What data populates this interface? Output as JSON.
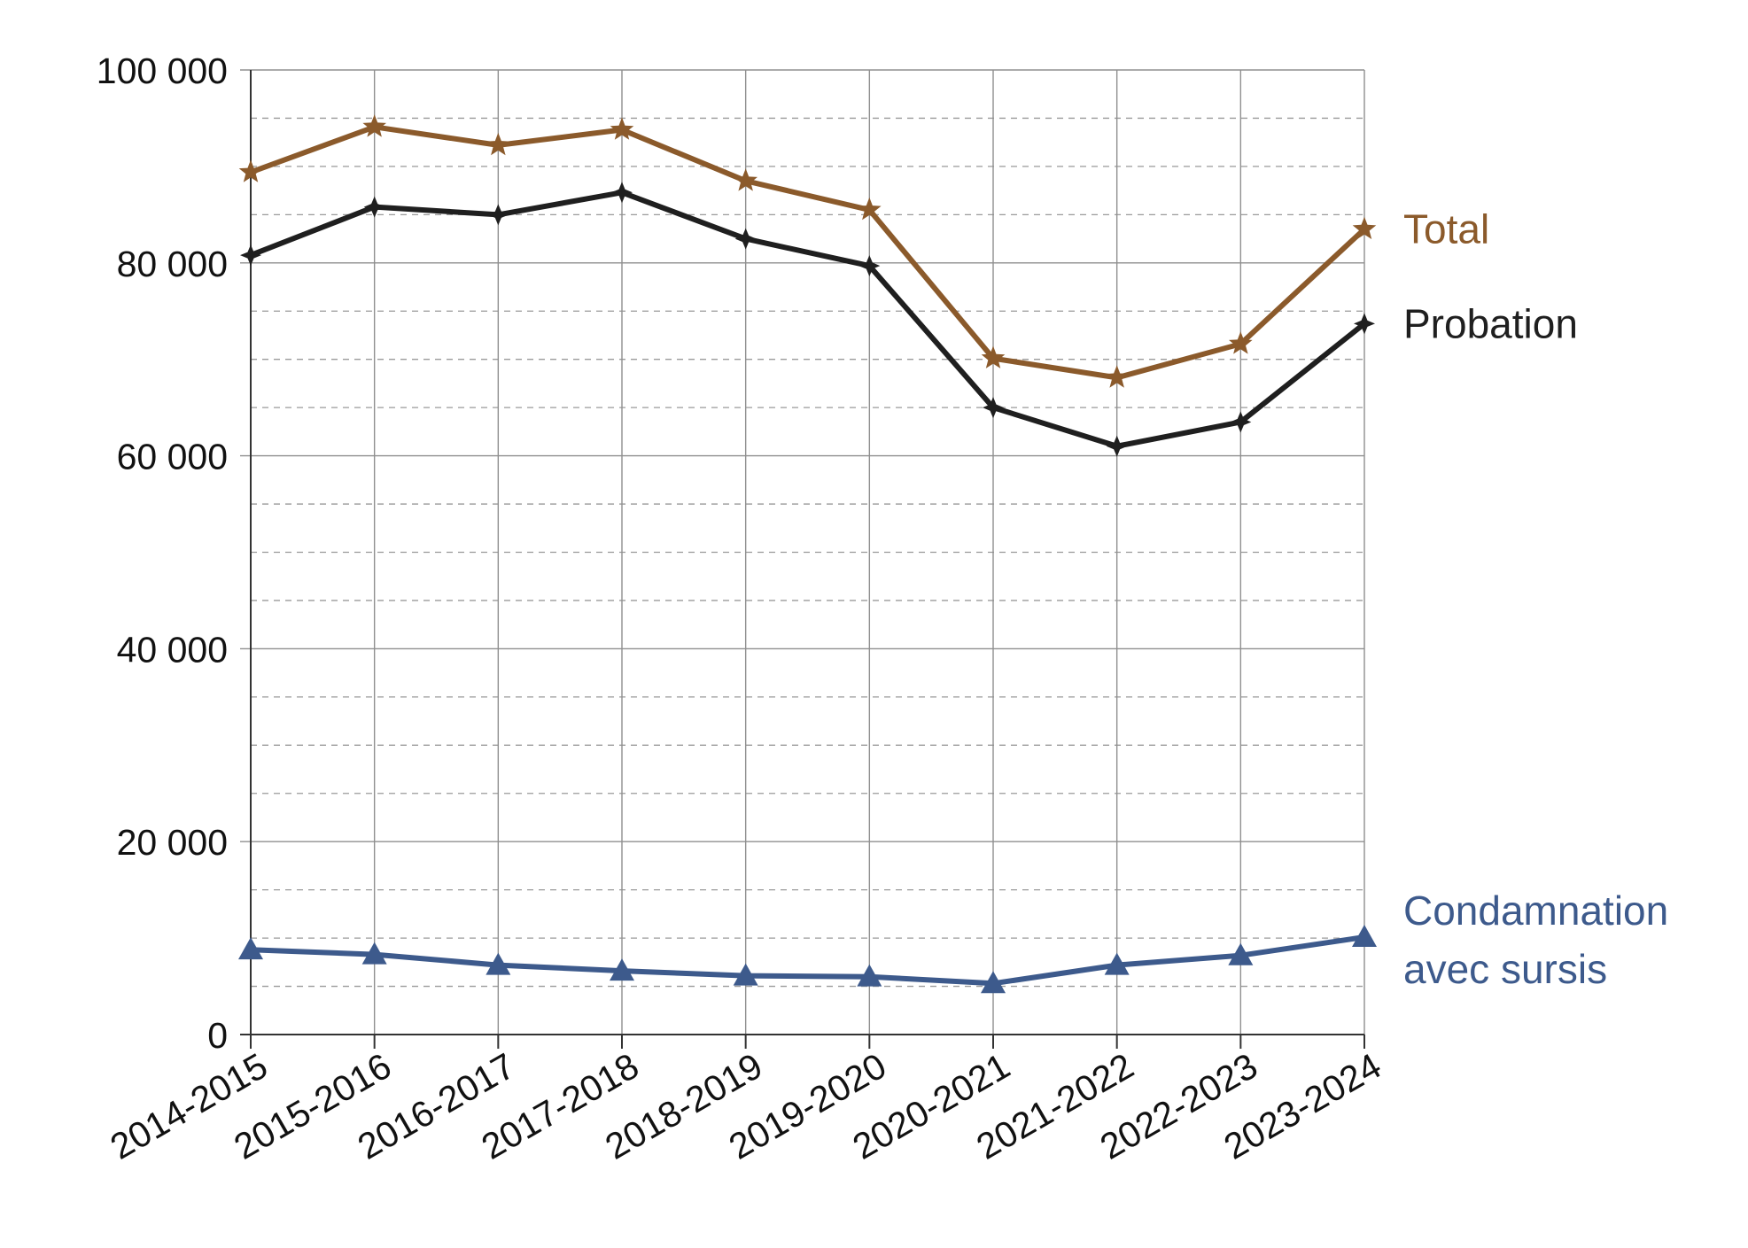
{
  "chart_data": {
    "type": "line",
    "title": "",
    "xlabel": "",
    "ylabel": "",
    "categories": [
      "2014-2015",
      "2015-2016",
      "2016-2017",
      "2017-2018",
      "2018-2019",
      "2019-2020",
      "2020-2021",
      "2021-2022",
      "2022-2023",
      "2023-2024"
    ],
    "ylim": [
      0,
      100000
    ],
    "y_ticks": [
      0,
      20000,
      40000,
      60000,
      80000,
      100000
    ],
    "y_tick_labels": [
      "0",
      "20 000",
      "40 000",
      "60 000",
      "80 000",
      "100 000"
    ],
    "y_minor_step": 5000,
    "grid": true,
    "legend": "inline labels at right end of each line",
    "series": [
      {
        "name": "Total",
        "label_lines": [
          "Total"
        ],
        "color": "#8b5a2b",
        "marker": "star",
        "values": [
          89400,
          94100,
          92200,
          93800,
          88500,
          85500,
          70100,
          68100,
          71600,
          83500
        ]
      },
      {
        "name": "Probation",
        "label_lines": [
          "Probation"
        ],
        "color": "#1f1f1f",
        "marker": "star4",
        "values": [
          80800,
          85800,
          85000,
          87300,
          82500,
          79700,
          65000,
          61000,
          63500,
          73700
        ]
      },
      {
        "name": "Condamnation avec sursis",
        "label_lines": [
          "Condamnation",
          "avec sursis"
        ],
        "color": "#3d5a8c",
        "marker": "triangle",
        "values": [
          8800,
          8300,
          7200,
          6600,
          6100,
          6000,
          5300,
          7200,
          8200,
          10100
        ]
      }
    ]
  }
}
